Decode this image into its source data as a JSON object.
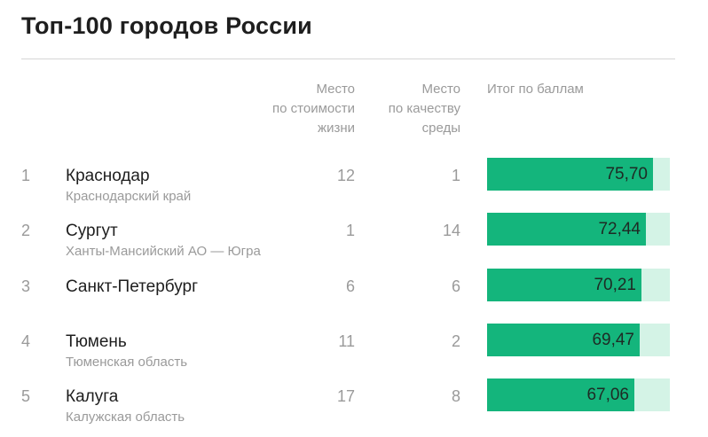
{
  "title": "Топ-100 городов России",
  "colors": {
    "bar_fill": "#14b57c",
    "bar_track": "#d4f3e6",
    "muted_text": "#9a9a9a"
  },
  "chart_data": {
    "type": "table",
    "title": "Топ-100 городов России",
    "columns": {
      "cost": [
        "Место",
        "по стоимости",
        "жизни"
      ],
      "quality": [
        "Место",
        "по качеству",
        "среды"
      ],
      "total": "Итог по баллам"
    },
    "score_scale_max": 100,
    "rows": [
      {
        "rank": "1",
        "city": "Краснодар",
        "region": "Краснодарский край",
        "cost_place": "12",
        "quality_place": "1",
        "score": 75.7,
        "score_label": "75,70"
      },
      {
        "rank": "2",
        "city": "Сургут",
        "region": "Ханты-Мансийский АО — Югра",
        "cost_place": "1",
        "quality_place": "14",
        "score": 72.44,
        "score_label": "72,44"
      },
      {
        "rank": "3",
        "city": "Санкт-Петербург",
        "region": "",
        "cost_place": "6",
        "quality_place": "6",
        "score": 70.21,
        "score_label": "70,21"
      },
      {
        "rank": "4",
        "city": "Тюмень",
        "region": "Тюменская область",
        "cost_place": "11",
        "quality_place": "2",
        "score": 69.47,
        "score_label": "69,47"
      },
      {
        "rank": "5",
        "city": "Калуга",
        "region": "Калужская область",
        "cost_place": "17",
        "quality_place": "8",
        "score": 67.06,
        "score_label": "67,06"
      }
    ]
  }
}
